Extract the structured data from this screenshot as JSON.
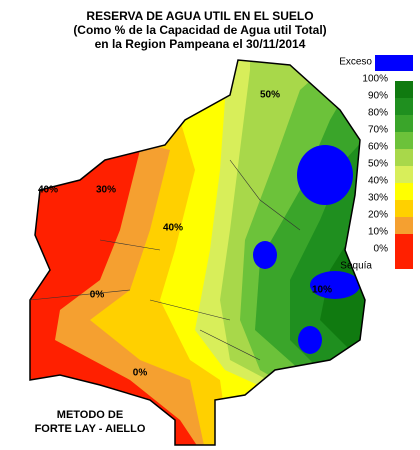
{
  "header": {
    "title": [
      "RESERVA DE AGUA UTIL EN EL SUELO",
      "(Como % de la Capacidad de  Agua util Total)",
      "en la Region Pampeana el 30/11/2014"
    ]
  },
  "legend": [
    {
      "label": "Exceso",
      "color": "#0000ff"
    },
    {
      "label": "100%",
      "color": "#006400"
    },
    {
      "label": "90%",
      "color": "#107a10"
    },
    {
      "label": "80%",
      "color": "#1f8f1f"
    },
    {
      "label": "70%",
      "color": "#3aa52a"
    },
    {
      "label": "60%",
      "color": "#6cc23a"
    },
    {
      "label": "50%",
      "color": "#a8d84a"
    },
    {
      "label": "40%",
      "color": "#d8ee5a"
    },
    {
      "label": "30%",
      "color": "#ffff00"
    },
    {
      "label": "20%",
      "color": "#ffd000"
    },
    {
      "label": "10%",
      "color": "#f5a030"
    },
    {
      "label": "0%",
      "color": "#ff2000"
    },
    {
      "label": "Sequía",
      "color": "#ff2000"
    }
  ],
  "method": [
    "METODO DE",
    "FORTE LAY - AIELLO"
  ],
  "contour_labels": [
    "50%",
    "40%",
    "0%",
    "0%",
    "10%",
    "40%",
    "30%"
  ]
}
